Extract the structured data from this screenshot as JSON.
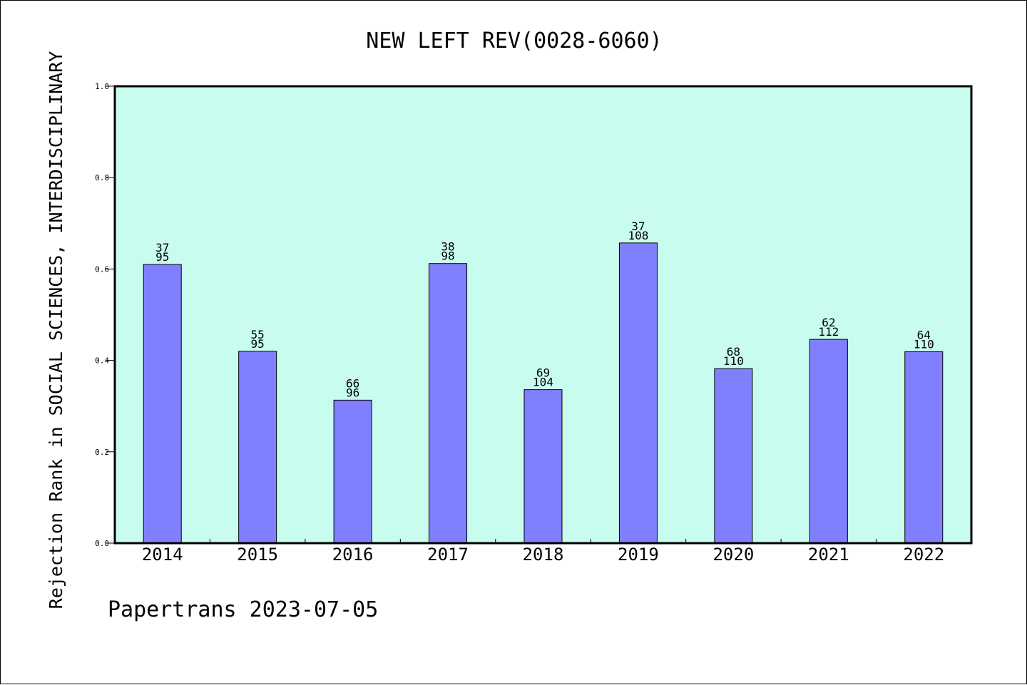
{
  "chart_data": {
    "type": "bar",
    "title": "NEW LEFT REV(0028-6060)",
    "xlabel": "",
    "ylabel": "Rejection Rank in SOCIAL SCIENCES, INTERDISCIPLINARY",
    "footer": "Papertrans 2023-07-05",
    "ylim": [
      0,
      1.0
    ],
    "yticks": [
      "0.0",
      "0.2",
      "0.4",
      "0.6",
      "0.8",
      "1.0"
    ],
    "categories": [
      "2014",
      "2015",
      "2016",
      "2017",
      "2018",
      "2019",
      "2020",
      "2021",
      "2022"
    ],
    "values": [
      0.61,
      0.42,
      0.313,
      0.612,
      0.336,
      0.657,
      0.382,
      0.446,
      0.419
    ],
    "labels_top": [
      "37",
      "55",
      "66",
      "38",
      "69",
      "37",
      "68",
      "62",
      "64"
    ],
    "labels_bottom": [
      "95",
      "95",
      "96",
      "98",
      "104",
      "108",
      "110",
      "112",
      "110"
    ],
    "grid": false,
    "colors": {
      "plot_bg": "#c8fcee",
      "bar": "#8080ff",
      "bar_edge": "#000000"
    }
  }
}
